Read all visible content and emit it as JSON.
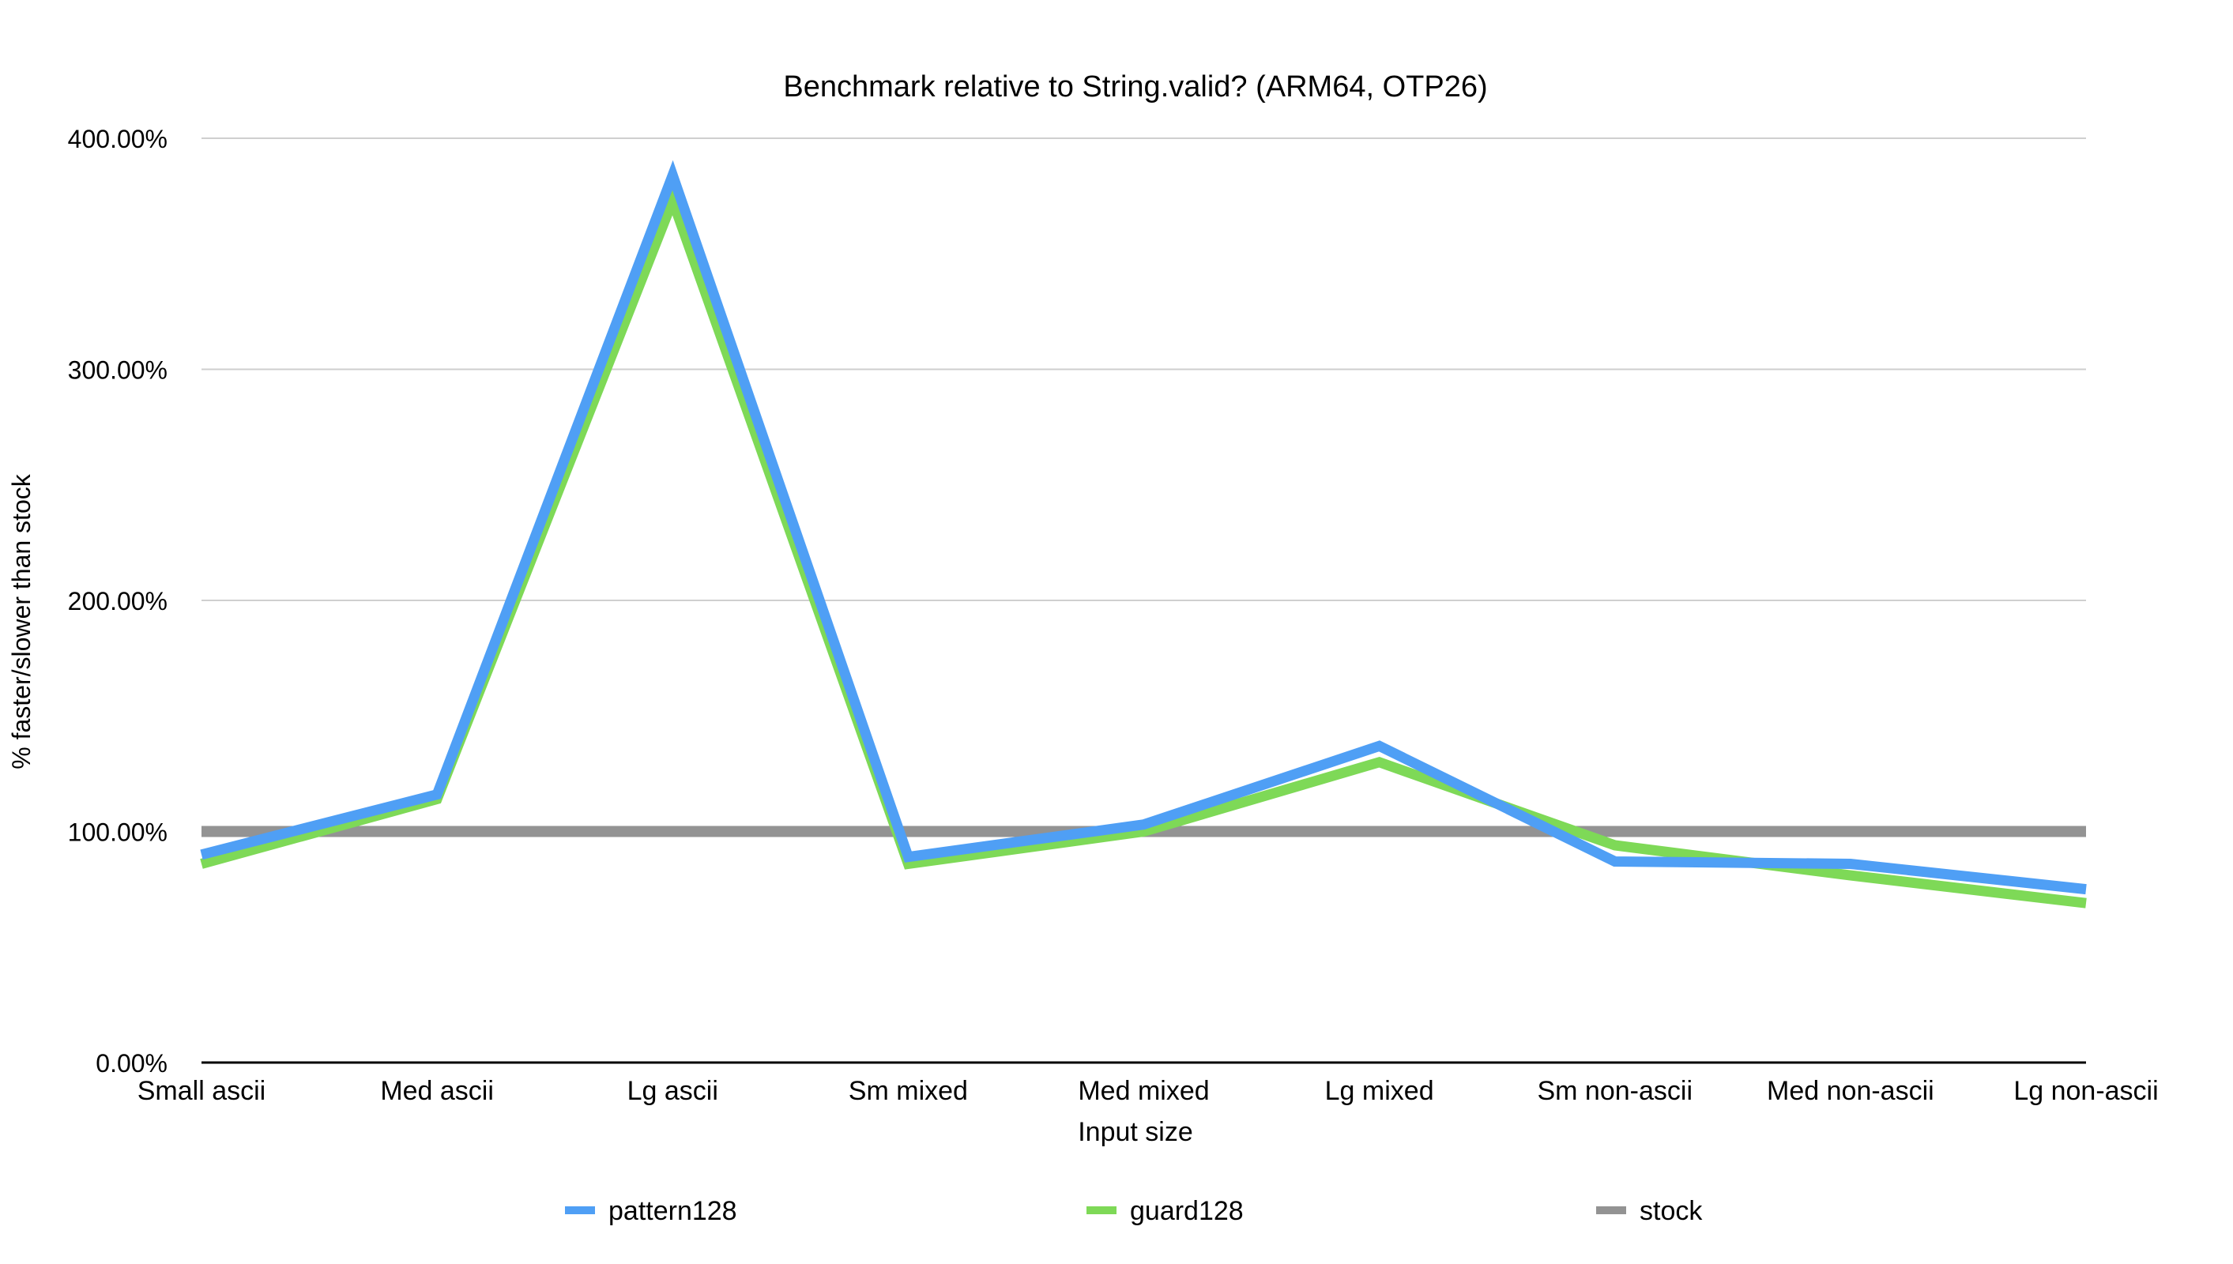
{
  "chart_data": {
    "type": "line",
    "title": "Benchmark relative to String.valid? (ARM64, OTP26)",
    "xlabel": "Input size",
    "ylabel": "% faster/slower than stock",
    "ylim": [
      0,
      400
    ],
    "yticks": [
      0,
      100,
      200,
      300,
      400
    ],
    "ytick_labels": [
      "0.00%",
      "100.00%",
      "200.00%",
      "300.00%",
      "400.00%"
    ],
    "grid": true,
    "legend_position": "bottom",
    "categories": [
      "Small ascii",
      "Med ascii",
      "Lg ascii",
      "Sm mixed",
      "Med mixed",
      "Lg mixed",
      "Sm non-ascii",
      "Med non-ascii",
      "Lg non-ascii"
    ],
    "series": [
      {
        "name": "stock",
        "color": "#939393",
        "values": [
          100,
          100,
          100,
          100,
          100,
          100,
          100,
          100,
          100
        ]
      },
      {
        "name": "guard128",
        "color": "#7ed957",
        "values": [
          86,
          114,
          373,
          86,
          100,
          130,
          94,
          81,
          69
        ]
      },
      {
        "name": "pattern128",
        "color": "#4f9ff5",
        "values": [
          90,
          116,
          384,
          89,
          103,
          137,
          87,
          86,
          75
        ]
      }
    ],
    "legend_order": [
      "pattern128",
      "guard128",
      "stock"
    ]
  }
}
